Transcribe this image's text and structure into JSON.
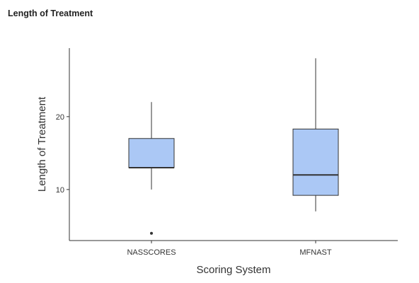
{
  "chart_data": {
    "type": "boxplot",
    "title": "Length of Treatment",
    "xlabel": "Scoring System",
    "ylabel": "Length of Treatment",
    "categories": [
      "NASSCORES",
      "MFNAST"
    ],
    "boxes": [
      {
        "category": "NASSCORES",
        "min": 10,
        "q1": 13,
        "median": 13,
        "q3": 17,
        "max": 22,
        "outliers": [
          4
        ]
      },
      {
        "category": "MFNAST",
        "min": 7,
        "q1": 9.2,
        "median": 12,
        "q3": 18.3,
        "max": 28,
        "outliers": []
      }
    ],
    "yticks": [
      10,
      20
    ],
    "ylim": [
      3,
      29.4
    ],
    "grid": false,
    "colors": {
      "box_fill": "#abc8f5",
      "box_stroke": "#333333",
      "axis": "#333333"
    }
  }
}
